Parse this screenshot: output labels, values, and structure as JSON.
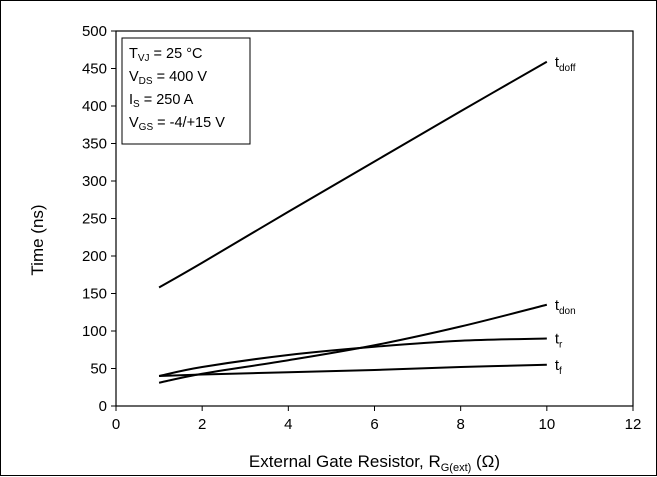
{
  "chart_data": {
    "type": "line",
    "xlabel": {
      "main": "External Gate Resistor, R",
      "sub": "G(ext)",
      "unit": " (Ω)"
    },
    "ylabel": "Time (ns)",
    "xlim": [
      0,
      12
    ],
    "ylim": [
      0,
      500
    ],
    "xticks": [
      0,
      2,
      4,
      6,
      8,
      10,
      12
    ],
    "yticks": [
      0,
      50,
      100,
      150,
      200,
      250,
      300,
      350,
      400,
      450,
      500
    ],
    "grid": false,
    "conditions": [
      {
        "main": "T",
        "sub": "VJ",
        "rest": " = 25 °C"
      },
      {
        "main": "V",
        "sub": "DS",
        "rest": " = 400 V"
      },
      {
        "main": "I",
        "sub": "S",
        "rest": " = 250 A"
      },
      {
        "main": "V",
        "sub": "GS",
        "rest": " = -4/+15 V"
      }
    ],
    "series": [
      {
        "name": "t",
        "sub": "doff",
        "x": [
          1,
          2,
          4,
          6,
          8,
          10
        ],
        "y": [
          158,
          191,
          259,
          326,
          393,
          459
        ]
      },
      {
        "name": "t",
        "sub": "don",
        "x": [
          1,
          2,
          4,
          6,
          8,
          10
        ],
        "y": [
          31,
          43,
          61,
          81,
          106,
          135
        ]
      },
      {
        "name": "t",
        "sub": "r",
        "x": [
          1,
          2,
          4,
          6,
          8,
          10
        ],
        "y": [
          40,
          52,
          68,
          79,
          87,
          90
        ]
      },
      {
        "name": "t",
        "sub": "f",
        "x": [
          1,
          2,
          4,
          6,
          8,
          10
        ],
        "y": [
          40,
          42,
          45,
          48,
          52,
          55
        ]
      }
    ]
  }
}
